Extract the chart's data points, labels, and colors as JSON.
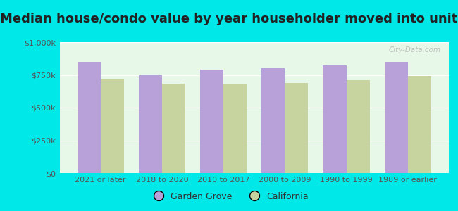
{
  "title": "Median house/condo value by year householder moved into unit",
  "categories": [
    "2021 or later",
    "2018 to 2020",
    "2010 to 2017",
    "2000 to 2009",
    "1990 to 1999",
    "1989 or earlier"
  ],
  "garden_grove": [
    850000,
    750000,
    790000,
    800000,
    820000,
    850000
  ],
  "california": [
    715000,
    685000,
    680000,
    690000,
    710000,
    740000
  ],
  "bar_color_gg": "#b8a0d8",
  "bar_color_ca": "#c8d4a0",
  "background_color": "#00e8e8",
  "plot_bg_color": "#e8f8e8",
  "ylim": [
    0,
    1000000
  ],
  "yticks": [
    0,
    250000,
    500000,
    750000,
    1000000
  ],
  "ytick_labels": [
    "$0",
    "$250k",
    "$500k",
    "$750k",
    "$1,000k"
  ],
  "legend_gg": "Garden Grove",
  "legend_ca": "California",
  "watermark": "City-Data.com",
  "bar_width": 0.38,
  "title_fontsize": 13,
  "tick_fontsize": 8,
  "legend_fontsize": 9
}
